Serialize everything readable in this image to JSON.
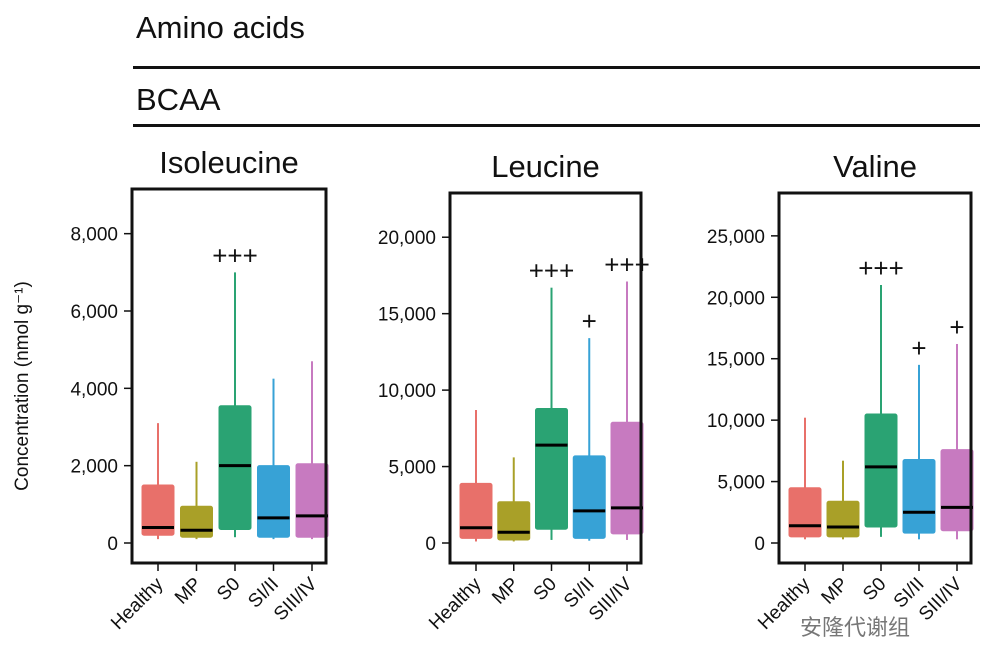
{
  "header": {
    "section_title": "Amino acids",
    "subsection_title": "BCAA"
  },
  "watermark": "安隆代谢组",
  "colors": {
    "Healthy": "#e8706a",
    "MP": "#a9a028",
    "S0": "#2aa373",
    "SI/II": "#37a2d6",
    "SIII/IV": "#c77ac0"
  },
  "chart_data": [
    {
      "type": "box",
      "title": "Isoleucine",
      "ylabel": "Concentration (nmol g⁻¹)",
      "xlabel": "",
      "ylim": [
        0,
        9000
      ],
      "yticks": [
        0,
        2000,
        4000,
        6000,
        8000
      ],
      "ytick_labels": [
        "0",
        "2,000",
        "4,000",
        "6,000",
        "8,000"
      ],
      "categories": [
        "Healthy",
        "MP",
        "S0",
        "SI/II",
        "SIII/IV"
      ],
      "boxes": [
        {
          "whisker_low": 100,
          "q1": 200,
          "median": 400,
          "q3": 1500,
          "whisker_high": 3100,
          "sig": ""
        },
        {
          "whisker_low": 100,
          "q1": 150,
          "median": 330,
          "q3": 950,
          "whisker_high": 2100,
          "sig": ""
        },
        {
          "whisker_low": 150,
          "q1": 350,
          "median": 2000,
          "q3": 3550,
          "whisker_high": 7000,
          "sig": "+++"
        },
        {
          "whisker_low": 100,
          "q1": 150,
          "median": 650,
          "q3": 2000,
          "whisker_high": 4250,
          "sig": ""
        },
        {
          "whisker_low": 100,
          "q1": 150,
          "median": 700,
          "q3": 2050,
          "whisker_high": 4700,
          "sig": ""
        }
      ]
    },
    {
      "type": "box",
      "title": "Leucine",
      "ylabel": "",
      "xlabel": "",
      "ylim": [
        0,
        22500
      ],
      "yticks": [
        0,
        5000,
        10000,
        15000,
        20000
      ],
      "ytick_labels": [
        "0",
        "5,000",
        "10,000",
        "15,000",
        "20,000"
      ],
      "categories": [
        "Healthy",
        "MP",
        "S0",
        "SI/II",
        "SIII/IV"
      ],
      "boxes": [
        {
          "whisker_low": 100,
          "q1": 300,
          "median": 1000,
          "q3": 3900,
          "whisker_high": 8700,
          "sig": ""
        },
        {
          "whisker_low": 100,
          "q1": 200,
          "median": 700,
          "q3": 2700,
          "whisker_high": 5600,
          "sig": ""
        },
        {
          "whisker_low": 200,
          "q1": 900,
          "median": 6400,
          "q3": 8800,
          "whisker_high": 16700,
          "sig": "+++"
        },
        {
          "whisker_low": 150,
          "q1": 300,
          "median": 2100,
          "q3": 5700,
          "whisker_high": 13400,
          "sig": "+"
        },
        {
          "whisker_low": 200,
          "q1": 600,
          "median": 2300,
          "q3": 7900,
          "whisker_high": 17100,
          "sig": "+++"
        }
      ]
    },
    {
      "type": "box",
      "title": "Valine",
      "ylabel": "",
      "xlabel": "",
      "ylim": [
        0,
        28000
      ],
      "yticks": [
        0,
        5000,
        10000,
        15000,
        20000,
        25000
      ],
      "ytick_labels": [
        "0",
        "5,000",
        "10,000",
        "15,000",
        "20,000",
        "25,000"
      ],
      "categories": [
        "Healthy",
        "MP",
        "S0",
        "SI/II",
        "SIII/IV"
      ],
      "boxes": [
        {
          "whisker_low": 300,
          "q1": 500,
          "median": 1400,
          "q3": 4500,
          "whisker_high": 10200,
          "sig": ""
        },
        {
          "whisker_low": 300,
          "q1": 500,
          "median": 1300,
          "q3": 3400,
          "whisker_high": 6700,
          "sig": ""
        },
        {
          "whisker_low": 500,
          "q1": 1300,
          "median": 6200,
          "q3": 10500,
          "whisker_high": 21000,
          "sig": "+++"
        },
        {
          "whisker_low": 300,
          "q1": 800,
          "median": 2500,
          "q3": 6800,
          "whisker_high": 14500,
          "sig": "+"
        },
        {
          "whisker_low": 300,
          "q1": 1000,
          "median": 2900,
          "q3": 7600,
          "whisker_high": 16200,
          "sig": "+"
        }
      ]
    }
  ]
}
